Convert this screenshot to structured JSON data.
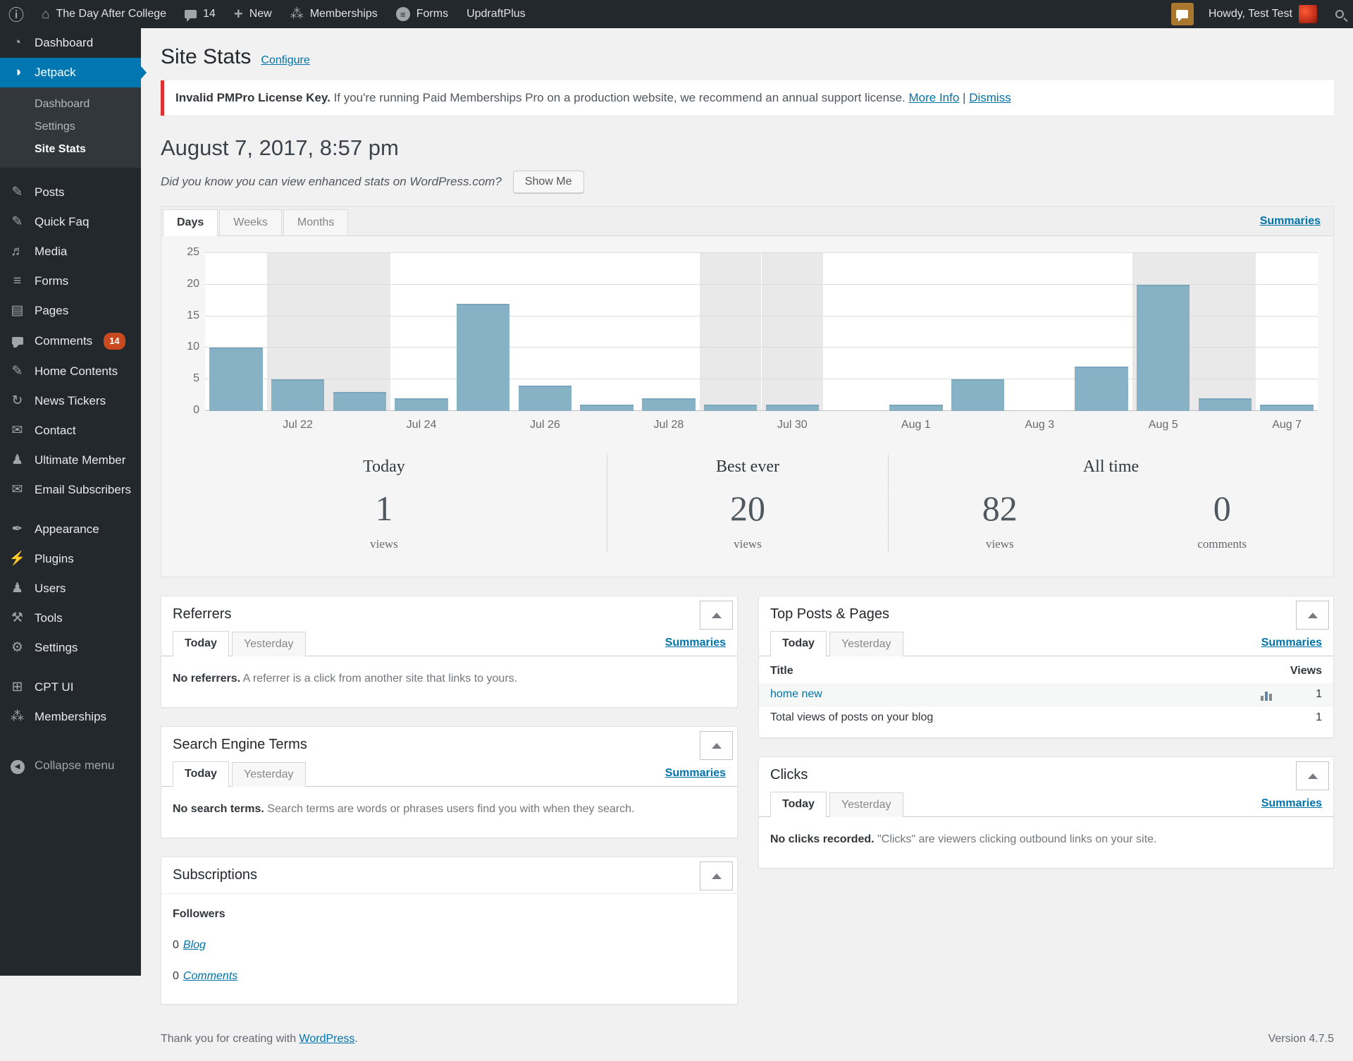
{
  "colors": {
    "accent_link": "#0073aa",
    "notice_red": "#dc3232",
    "badge_red": "#ca4a1f",
    "menu_active_blue": "#0077b1",
    "bar_blue": "#87b1c5",
    "weekend_band": "#e9e9e9",
    "notification_bg": "#a9772e",
    "avatar_red": "#c3311c"
  },
  "admin_bar": {
    "site_name": "The Day After College",
    "comments_count": "14",
    "new_label": "New",
    "memberships_label": "Memberships",
    "forms_label": "Forms",
    "updraft_label": "UpdraftPlus",
    "howdy": "Howdy, Test Test"
  },
  "sidebar": {
    "items": [
      {
        "label": "Dashboard",
        "icon": "dashboard-icon"
      },
      {
        "label": "Jetpack",
        "icon": "jetpack-icon",
        "active": true,
        "submenu": [
          {
            "label": "Dashboard"
          },
          {
            "label": "Settings"
          },
          {
            "label": "Site Stats",
            "current": true
          }
        ]
      },
      {
        "type": "gap"
      },
      {
        "label": "Posts",
        "icon": "pushpin-icon"
      },
      {
        "label": "Quick Faq",
        "icon": "pushpin-icon"
      },
      {
        "label": "Media",
        "icon": "media-icon"
      },
      {
        "label": "Forms",
        "icon": "forms-icon"
      },
      {
        "label": "Pages",
        "icon": "pages-icon"
      },
      {
        "label": "Comments",
        "icon": "comments-icon",
        "badge": "14"
      },
      {
        "label": "Home Contents",
        "icon": "pushpin-icon"
      },
      {
        "label": "News Tickers",
        "icon": "news-tickers-icon"
      },
      {
        "label": "Contact",
        "icon": "contact-icon"
      },
      {
        "label": "Ultimate Member",
        "icon": "user-icon"
      },
      {
        "label": "Email Subscribers",
        "icon": "email-icon"
      },
      {
        "type": "gap"
      },
      {
        "label": "Appearance",
        "icon": "appearance-icon"
      },
      {
        "label": "Plugins",
        "icon": "plugins-icon"
      },
      {
        "label": "Users",
        "icon": "users-icon"
      },
      {
        "label": "Tools",
        "icon": "tools-icon"
      },
      {
        "label": "Settings",
        "icon": "settings-icon"
      },
      {
        "type": "gap"
      },
      {
        "label": "CPT UI",
        "icon": "cpt-ui-icon"
      },
      {
        "label": "Memberships",
        "icon": "memberships-icon"
      },
      {
        "type": "biggap"
      },
      {
        "label": "Collapse menu",
        "icon": "collapse-icon",
        "muted": true
      }
    ]
  },
  "page": {
    "title": "Site Stats",
    "configure_label": "Configure",
    "notice": {
      "bold": "Invalid PMPro License Key.",
      "text": "If you're running Paid Memberships Pro on a production website, we recommend an annual support license.",
      "more_info": "More Info",
      "divider": "|",
      "dismiss": "Dismiss"
    },
    "date_heading": "August 7, 2017, 8:57 pm",
    "enhanced_prompt": "Did you know you can view enhanced stats on WordPress.com?",
    "show_me_label": "Show Me"
  },
  "chart": {
    "tabs": [
      "Days",
      "Weeks",
      "Months"
    ],
    "active_tab": "Days",
    "summaries_label": "Summaries"
  },
  "chart_data": {
    "type": "bar",
    "title": "Views per day",
    "x": [
      "Jul 21",
      "Jul 22",
      "Jul 23",
      "Jul 24",
      "Jul 25",
      "Jul 26",
      "Jul 27",
      "Jul 28",
      "Jul 29",
      "Jul 30",
      "Jul 31",
      "Aug 1",
      "Aug 2",
      "Aug 3",
      "Aug 4",
      "Aug 5",
      "Aug 6",
      "Aug 7"
    ],
    "values": [
      10,
      5,
      3,
      2,
      17,
      4,
      1,
      2,
      1,
      1,
      0,
      1,
      5,
      0,
      7,
      20,
      2,
      1
    ],
    "xtick_labels": [
      "Jul 22",
      "Jul 24",
      "Jul 26",
      "Jul 28",
      "Jul 30",
      "Aug 1",
      "Aug 3",
      "Aug 5",
      "Aug 7"
    ],
    "ylim": [
      0,
      25
    ],
    "yticks": [
      0,
      5,
      10,
      15,
      20,
      25
    ],
    "weekend_shaded_x": [
      "Jul 22",
      "Jul 23",
      "Jul 29",
      "Jul 30",
      "Aug 5",
      "Aug 6"
    ],
    "bar_color": "#87b1c5",
    "weekend_band_color": "#e9e9e9",
    "grid": true,
    "legend": false
  },
  "summary": {
    "today": {
      "label": "Today",
      "value": "1",
      "unit": "views"
    },
    "best_ever": {
      "label": "Best ever",
      "value": "20",
      "unit": "views"
    },
    "all_time": {
      "label": "All time",
      "views": {
        "value": "82",
        "unit": "views"
      },
      "comments": {
        "value": "0",
        "unit": "comments"
      }
    }
  },
  "modules": {
    "referrers": {
      "title": "Referrers",
      "tab_today": "Today",
      "tab_yesterday": "Yesterday",
      "summaries": "Summaries",
      "body_bold": "No referrers.",
      "body_text": "A referrer is a click from another site that links to yours."
    },
    "search_terms": {
      "title": "Search Engine Terms",
      "tab_today": "Today",
      "tab_yesterday": "Yesterday",
      "summaries": "Summaries",
      "body_bold": "No search terms.",
      "body_text": "Search terms are words or phrases users find you with when they search."
    },
    "subscriptions": {
      "title": "Subscriptions",
      "followers_label": "Followers",
      "rows": [
        {
          "count": "0",
          "link": "Blog"
        },
        {
          "count": "0",
          "link": "Comments"
        }
      ]
    },
    "top_posts": {
      "title": "Top Posts & Pages",
      "tab_today": "Today",
      "tab_yesterday": "Yesterday",
      "summaries": "Summaries",
      "col_title": "Title",
      "col_views": "Views",
      "rows": [
        {
          "title": "home new",
          "views": "1"
        },
        {
          "title": "Total views of posts on your blog",
          "views": "1"
        }
      ]
    },
    "clicks": {
      "title": "Clicks",
      "tab_today": "Today",
      "tab_yesterday": "Yesterday",
      "summaries": "Summaries",
      "body_bold": "No clicks recorded.",
      "body_text": "\"Clicks\" are viewers clicking outbound links on your site."
    }
  },
  "footer": {
    "thanks_prefix": "Thank you for creating with",
    "wordpress_link": "WordPress",
    "suffix": ".",
    "version": "Version 4.7.5"
  }
}
